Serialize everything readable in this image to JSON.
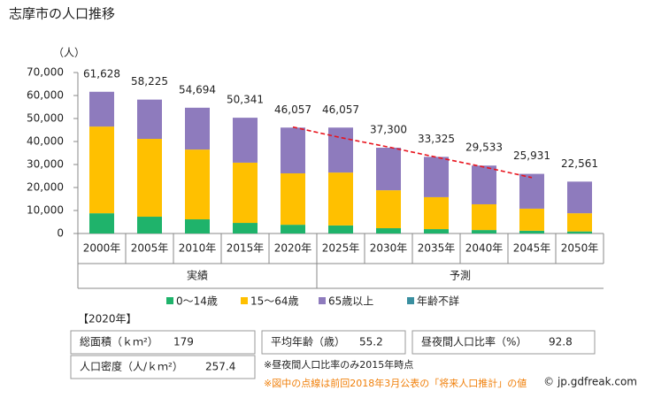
{
  "chart_data": {
    "type": "stacked_bar",
    "title": "志摩市の人口推移",
    "y_unit": "（人）",
    "categories": [
      "2000年",
      "2005年",
      "2010年",
      "2015年",
      "2020年",
      "2025年",
      "2030年",
      "2035年",
      "2040年",
      "2045年",
      "2050年"
    ],
    "groups": [
      {
        "label": "実績",
        "from": 0,
        "to": 4
      },
      {
        "label": "予測",
        "from": 5,
        "to": 10
      }
    ],
    "series": [
      {
        "name": "0～14歳",
        "color": "#1fb36b",
        "values": [
          8800,
          7300,
          6150,
          4600,
          3800,
          3500,
          2300,
          1900,
          1500,
          1200,
          900
        ]
      },
      {
        "name": "15～64歳",
        "color": "#ffc000",
        "values": [
          37700,
          33850,
          30350,
          26200,
          22350,
          23000,
          16500,
          13900,
          11200,
          9600,
          7900
        ]
      },
      {
        "name": "65歳以上",
        "color": "#8e7bbd",
        "values": [
          15128,
          17075,
          18194,
          19541,
          19907,
          19557,
          18500,
          17525,
          16833,
          15131,
          13761
        ]
      },
      {
        "name": "年齢不詳",
        "color": "#3a8fa0",
        "values": [
          0,
          0,
          0,
          0,
          0,
          0,
          0,
          0,
          0,
          0,
          0
        ]
      }
    ],
    "totals": {
      "values": [
        61628,
        58225,
        54694,
        50341,
        46057,
        46057,
        37300,
        33325,
        29533,
        25931,
        22561
      ],
      "value_labels": [
        "61,628",
        "58,225",
        "54,694",
        "50,341",
        "46,057",
        "46,057",
        "37,300",
        "33,325",
        "29,533",
        "25,931",
        "22,561"
      ]
    },
    "previous_projection": {
      "color": "#e8141e",
      "values": [
        null,
        null,
        null,
        null,
        46300,
        41700,
        37600,
        33200,
        28900,
        24300,
        null
      ]
    },
    "ylim": [
      0,
      70000
    ],
    "yticks": [
      0,
      {
        "value": 10000,
        "label": "10,000"
      },
      {
        "value": 20000,
        "label": "20,000"
      },
      {
        "value": 30000,
        "label": "30,000"
      },
      {
        "value": 40000,
        "label": "40,000"
      },
      {
        "value": 50000,
        "label": "50,000"
      },
      {
        "value": 60000,
        "label": "60,000"
      },
      {
        "value": 70000,
        "label": "70,000"
      }
    ]
  },
  "info": {
    "heading": "【2020年】",
    "area_label": "総面積（ｋｍ²）",
    "area": "179",
    "age_label": "平均年齢（歳）",
    "age": "55.2",
    "ratio_label": "昼夜間人口比率（%）",
    "ratio": "92.8",
    "density_label": "人口密度（人/ｋｍ²）",
    "density": "257.4",
    "note1": "※昼夜間人口比率のみ2015年時点",
    "note2": "※図中の点線は前回2018年3月公表の「将来人口推計」の値",
    "credit": "© jp.gdfreak.com"
  }
}
